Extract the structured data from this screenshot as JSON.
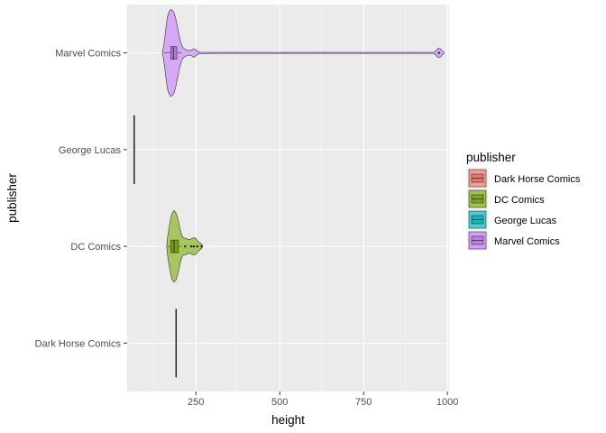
{
  "chart_data": {
    "type": "violin-boxplot",
    "orientation": "horizontal",
    "xlabel": "height",
    "ylabel": "publisher",
    "xlim": [
      45,
      1005
    ],
    "x_ticks": [
      250,
      500,
      750,
      1000
    ],
    "categories": [
      "Dark Horse Comics",
      "DC Comics",
      "George Lucas",
      "Marvel Comics"
    ],
    "grid": true,
    "legend": {
      "title": "publisher",
      "placement": "right",
      "entries": [
        "Dark Horse Comics",
        "DC Comics",
        "George Lucas",
        "Marvel Comics"
      ]
    },
    "colors": {
      "Dark Horse Comics": "#F8766D",
      "DC Comics": "#7CAE00",
      "George Lucas": "#00BFC4",
      "Marvel Comics": "#C77CFF"
    },
    "series": [
      {
        "category": "Dark Horse Comics",
        "box": {
          "min": 191,
          "q1": 191,
          "median": 191,
          "q3": 191,
          "max": 191
        },
        "violin": []
      },
      {
        "category": "DC Comics",
        "box": {
          "min": 165,
          "q1": 175,
          "median": 185,
          "q3": 198,
          "max": 208
        },
        "outliers": [
          218,
          236,
          244,
          254,
          267
        ],
        "violin": [
          [
            163,
            0.02
          ],
          [
            165,
            0.18
          ],
          [
            168,
            0.33
          ],
          [
            172,
            0.52
          ],
          [
            176,
            0.68
          ],
          [
            180,
            0.78
          ],
          [
            185,
            0.82
          ],
          [
            190,
            0.78
          ],
          [
            194,
            0.7
          ],
          [
            198,
            0.58
          ],
          [
            202,
            0.43
          ],
          [
            206,
            0.3
          ],
          [
            210,
            0.22
          ],
          [
            215,
            0.19
          ],
          [
            220,
            0.19
          ],
          [
            226,
            0.16
          ],
          [
            232,
            0.16
          ],
          [
            238,
            0.18
          ],
          [
            244,
            0.2
          ],
          [
            250,
            0.18
          ],
          [
            256,
            0.12
          ],
          [
            262,
            0.08
          ],
          [
            267,
            0.05
          ],
          [
            270,
            0.01
          ]
        ]
      },
      {
        "category": "George Lucas",
        "box": {
          "min": 66,
          "q1": 66,
          "median": 66,
          "q3": 66,
          "max": 66
        },
        "violin": []
      },
      {
        "category": "Marvel Comics",
        "box": {
          "min": 155,
          "q1": 175,
          "median": 183,
          "q3": 193,
          "max": 208
        },
        "outliers": [
          975
        ],
        "violin": [
          [
            150,
            0.01
          ],
          [
            153,
            0.12
          ],
          [
            156,
            0.28
          ],
          [
            160,
            0.55
          ],
          [
            165,
            0.82
          ],
          [
            170,
            0.95
          ],
          [
            175,
            1.0
          ],
          [
            180,
            0.98
          ],
          [
            185,
            0.92
          ],
          [
            190,
            0.78
          ],
          [
            195,
            0.6
          ],
          [
            200,
            0.4
          ],
          [
            205,
            0.24
          ],
          [
            210,
            0.14
          ],
          [
            216,
            0.09
          ],
          [
            222,
            0.07
          ],
          [
            230,
            0.05
          ],
          [
            238,
            0.07
          ],
          [
            244,
            0.1
          ],
          [
            250,
            0.07
          ],
          [
            256,
            0.03
          ],
          [
            262,
            0.015
          ],
          [
            300,
            0.012
          ],
          [
            960,
            0.012
          ],
          [
            965,
            0.05
          ],
          [
            970,
            0.09
          ],
          [
            975,
            0.11
          ],
          [
            980,
            0.09
          ],
          [
            985,
            0.04
          ],
          [
            990,
            0.01
          ]
        ]
      }
    ]
  }
}
